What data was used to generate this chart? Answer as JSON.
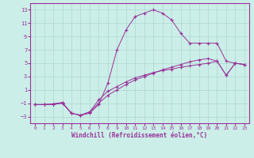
{
  "xlabel": "Windchill (Refroidissement éolien,°C)",
  "bg_color": "#cceee8",
  "grid_color": "#aad8d0",
  "line_color": "#993399",
  "xlim": [
    -0.5,
    23.5
  ],
  "ylim": [
    -4,
    14
  ],
  "xticks": [
    0,
    1,
    2,
    3,
    4,
    5,
    6,
    7,
    8,
    9,
    10,
    11,
    12,
    13,
    14,
    15,
    16,
    17,
    18,
    19,
    20,
    21,
    22,
    23
  ],
  "yticks": [
    -3,
    -1,
    1,
    3,
    5,
    7,
    9,
    11,
    13
  ],
  "series1_x": [
    0,
    1,
    2,
    3,
    4,
    5,
    6,
    7,
    8,
    9,
    10,
    11,
    12,
    13,
    14,
    15,
    16,
    17,
    18,
    19,
    20,
    21,
    22,
    23
  ],
  "series1_y": [
    -1.2,
    -1.2,
    -1.2,
    -1.0,
    -2.5,
    -2.8,
    -2.5,
    -1.2,
    2.0,
    7.0,
    10.0,
    12.0,
    12.5,
    13.0,
    12.5,
    11.5,
    9.5,
    8.0,
    8.0,
    8.0,
    8.0,
    5.3,
    5.0,
    4.8
  ],
  "series2_x": [
    0,
    1,
    2,
    3,
    4,
    5,
    6,
    7,
    8,
    9,
    10,
    11,
    12,
    13,
    14,
    15,
    16,
    17,
    18,
    19,
    20,
    21,
    22,
    23
  ],
  "series2_y": [
    -1.2,
    -1.2,
    -1.1,
    -0.9,
    -2.5,
    -2.8,
    -2.3,
    -1.0,
    0.2,
    1.0,
    1.8,
    2.5,
    3.0,
    3.5,
    4.0,
    4.4,
    4.8,
    5.2,
    5.5,
    5.7,
    5.3,
    3.2,
    5.0,
    4.8
  ],
  "series3_x": [
    0,
    1,
    2,
    3,
    4,
    5,
    6,
    7,
    8,
    9,
    10,
    11,
    12,
    13,
    14,
    15,
    16,
    17,
    18,
    19,
    20,
    21,
    22,
    23
  ],
  "series3_y": [
    -1.2,
    -1.2,
    -1.1,
    -0.9,
    -2.5,
    -2.8,
    -2.3,
    -0.5,
    0.8,
    1.5,
    2.2,
    2.8,
    3.2,
    3.6,
    3.9,
    4.1,
    4.4,
    4.6,
    4.8,
    5.0,
    5.3,
    3.2,
    5.0,
    4.8
  ]
}
